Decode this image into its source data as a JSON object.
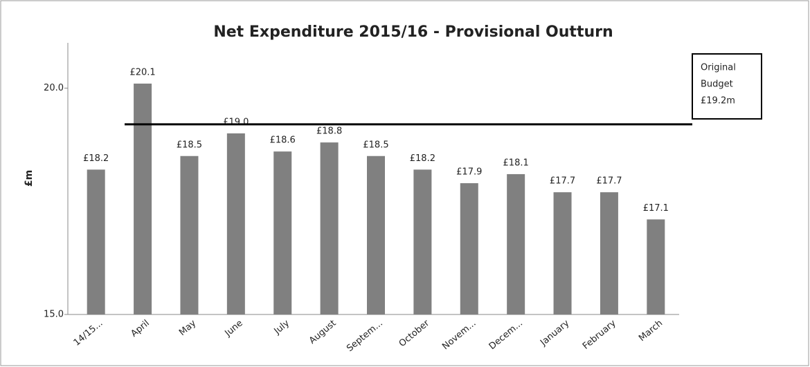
{
  "chart_data": {
    "type": "bar",
    "title": "Net Expenditure 2015/16 - Provisional Outturn",
    "y_label": "£m",
    "categories": [
      "14/15...",
      "April",
      "May",
      "June",
      "July",
      "August",
      "Septem...",
      "October",
      "Novem...",
      "Decem...",
      "January",
      "February",
      "March"
    ],
    "values": [
      18.2,
      20.1,
      18.5,
      19.0,
      18.6,
      18.8,
      18.5,
      18.2,
      17.9,
      18.1,
      17.7,
      17.7,
      17.1
    ],
    "value_labels": [
      "£18.2",
      "£20.1",
      "£18.5",
      "£19.0",
      "£18.6",
      "£18.8",
      "£18.5",
      "£18.2",
      "£17.9",
      "£18.1",
      "£17.7",
      "£17.7",
      "£17.1"
    ],
    "color": "#808080",
    "ylim": [
      15,
      21
    ],
    "yticks": [
      {
        "value": 15,
        "label": "15.0"
      },
      {
        "value": 20,
        "label": "20.0"
      }
    ],
    "grid": false,
    "budget": {
      "value": 19.2,
      "lines": [
        "Original",
        "Budget",
        "£19.2m"
      ]
    }
  }
}
